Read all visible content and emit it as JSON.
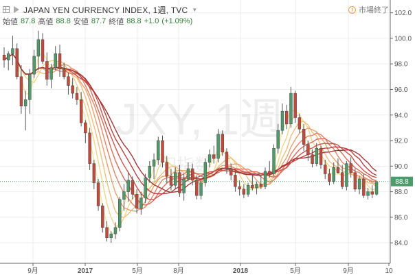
{
  "header": {
    "title": "JAPAN YEN CURRENCY INDEX, 1週, TVC",
    "open_label": "始値",
    "open_value": "87.8",
    "high_label": "高値",
    "high_value": "88.8",
    "low_label": "安値",
    "low_value": "87.7",
    "close_label": "終値",
    "close_value": "88.8",
    "change": "+1.0",
    "change_pct": "(+1.09%)",
    "market_status": "市場終了"
  },
  "watermark": {
    "symbol": "JXY, 1週",
    "subtitle": "円指数"
  },
  "price_tag": "88.8",
  "chart_data": {
    "type": "candlestick",
    "title": "JAPAN YEN CURRENCY INDEX, 1週, TVC",
    "x_ticks": [
      "9月",
      "2017",
      "5月",
      "8月",
      "2018",
      "5月",
      "9月",
      "10"
    ],
    "y_ticks": [
      "84.0",
      "86.0",
      "88.0",
      "90.0",
      "92.0",
      "94.0",
      "96.0",
      "98.0",
      "100.0",
      "102.0"
    ],
    "ylim": [
      82.4,
      103.0
    ],
    "last_close": 88.8,
    "series": [
      {
        "name": "candles",
        "values": [
          [
            98.7,
            99.3,
            97.7,
            98.3
          ],
          [
            98.3,
            99.0,
            97.5,
            98.8
          ],
          [
            98.8,
            100.2,
            97.9,
            99.2
          ],
          [
            99.2,
            99.6,
            96.8,
            97.0
          ],
          [
            97.0,
            97.9,
            94.1,
            94.7
          ],
          [
            94.7,
            95.9,
            92.8,
            95.2
          ],
          [
            95.2,
            97.6,
            94.1,
            97.2
          ],
          [
            97.2,
            99.1,
            96.9,
            98.6
          ],
          [
            98.6,
            100.6,
            97.5,
            99.9
          ],
          [
            99.9,
            100.4,
            98.0,
            98.2
          ],
          [
            98.2,
            98.9,
            96.3,
            96.8
          ],
          [
            96.8,
            98.0,
            96.1,
            97.7
          ],
          [
            97.7,
            99.4,
            97.5,
            98.8
          ],
          [
            98.8,
            99.5,
            97.0,
            97.6
          ],
          [
            97.6,
            98.1,
            96.8,
            97.0
          ],
          [
            97.0,
            97.3,
            95.6,
            96.3
          ],
          [
            96.3,
            96.9,
            95.3,
            95.7
          ],
          [
            95.7,
            96.2,
            94.8,
            95.2
          ],
          [
            95.2,
            95.8,
            93.1,
            93.4
          ],
          [
            93.4,
            93.6,
            91.8,
            92.6
          ],
          [
            92.6,
            93.0,
            89.7,
            90.2
          ],
          [
            90.2,
            90.5,
            88.2,
            88.7
          ],
          [
            88.7,
            89.0,
            86.5,
            86.9
          ],
          [
            86.9,
            87.1,
            84.8,
            85.2
          ],
          [
            85.2,
            85.7,
            84.1,
            84.4
          ],
          [
            84.4,
            84.9,
            84.0,
            84.7
          ],
          [
            84.7,
            85.6,
            84.3,
            85.2
          ],
          [
            85.2,
            87.6,
            84.9,
            87.4
          ],
          [
            87.4,
            88.6,
            86.5,
            88.0
          ],
          [
            88.0,
            89.5,
            87.2,
            88.9
          ],
          [
            88.9,
            89.2,
            87.4,
            87.8
          ],
          [
            87.8,
            88.2,
            86.3,
            86.7
          ],
          [
            86.7,
            88.0,
            86.2,
            87.5
          ],
          [
            87.5,
            89.4,
            87.1,
            89.1
          ],
          [
            89.1,
            90.4,
            88.7,
            90.0
          ],
          [
            90.0,
            91.0,
            89.0,
            90.5
          ],
          [
            90.5,
            92.3,
            90.1,
            92.0
          ],
          [
            92.0,
            92.4,
            89.9,
            90.3
          ],
          [
            90.3,
            90.8,
            88.7,
            89.2
          ],
          [
            89.2,
            89.8,
            88.1,
            88.5
          ],
          [
            88.5,
            89.9,
            88.2,
            89.5
          ],
          [
            89.5,
            90.1,
            87.6,
            87.9
          ],
          [
            87.9,
            89.4,
            87.3,
            89.0
          ],
          [
            89.0,
            90.3,
            88.8,
            89.8
          ],
          [
            89.8,
            90.2,
            88.5,
            88.9
          ],
          [
            88.9,
            89.3,
            87.4,
            87.7
          ],
          [
            87.7,
            88.9,
            87.4,
            88.7
          ],
          [
            88.7,
            90.6,
            88.4,
            90.3
          ],
          [
            90.3,
            91.3,
            89.9,
            90.9
          ],
          [
            90.9,
            91.6,
            90.2,
            90.6
          ],
          [
            90.6,
            92.9,
            90.3,
            92.5
          ],
          [
            92.5,
            92.8,
            90.8,
            91.1
          ],
          [
            91.1,
            91.4,
            89.4,
            89.8
          ],
          [
            89.8,
            90.2,
            88.9,
            89.3
          ],
          [
            89.3,
            89.6,
            88.0,
            88.4
          ],
          [
            88.4,
            88.9,
            87.7,
            88.2
          ],
          [
            88.2,
            88.6,
            87.5,
            87.8
          ],
          [
            87.8,
            88.7,
            87.6,
            88.5
          ],
          [
            88.5,
            89.3,
            88.1,
            88.3
          ],
          [
            88.3,
            88.8,
            87.8,
            88.6
          ],
          [
            88.6,
            89.3,
            88.2,
            88.4
          ],
          [
            88.4,
            89.9,
            88.2,
            89.6
          ],
          [
            89.6,
            90.4,
            89.1,
            89.4
          ],
          [
            89.4,
            91.7,
            89.2,
            91.4
          ],
          [
            91.4,
            93.3,
            91.0,
            92.8
          ],
          [
            92.8,
            94.9,
            92.5,
            94.3
          ],
          [
            94.3,
            94.8,
            92.9,
            93.3
          ],
          [
            93.3,
            96.2,
            93.0,
            95.7
          ],
          [
            95.7,
            95.9,
            93.4,
            93.8
          ],
          [
            93.8,
            94.1,
            92.6,
            92.9
          ],
          [
            92.9,
            93.3,
            91.2,
            91.7
          ],
          [
            91.7,
            92.0,
            90.4,
            90.9
          ],
          [
            90.9,
            91.3,
            89.9,
            90.2
          ],
          [
            90.2,
            91.8,
            90.0,
            91.4
          ],
          [
            91.4,
            91.6,
            89.8,
            90.1
          ],
          [
            90.1,
            90.5,
            89.0,
            89.4
          ],
          [
            89.4,
            89.8,
            88.5,
            88.8
          ],
          [
            88.8,
            90.3,
            88.6,
            89.9
          ],
          [
            89.9,
            90.6,
            89.4,
            89.5
          ],
          [
            89.5,
            90.1,
            88.2,
            88.4
          ],
          [
            88.4,
            90.4,
            88.1,
            90.2
          ],
          [
            90.2,
            90.7,
            89.1,
            89.5
          ],
          [
            89.5,
            89.8,
            88.0,
            88.2
          ],
          [
            88.2,
            89.2,
            87.8,
            89.0
          ],
          [
            89.0,
            89.4,
            87.5,
            87.7
          ],
          [
            87.7,
            88.3,
            87.4,
            88.0
          ],
          [
            88.0,
            88.5,
            87.5,
            87.8
          ],
          [
            87.8,
            88.8,
            87.7,
            88.8
          ]
        ]
      }
    ],
    "ribbon_colors": [
      "#f5e7a0",
      "#f2d58b",
      "#efbe7d",
      "#eba06f",
      "#e48363",
      "#d86a57",
      "#c9524b",
      "#b6403f",
      "#a33434"
    ],
    "colors": {
      "up": "#4e9a6a",
      "down": "#c2493d",
      "grid": "#eeeeee",
      "price_tag": "#4e9a6a"
    }
  }
}
